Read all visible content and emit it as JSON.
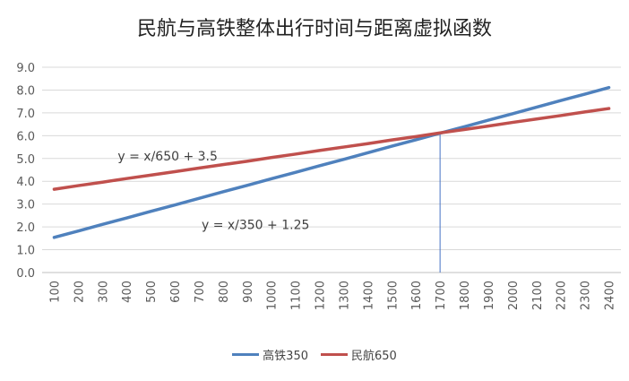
{
  "chart_data": {
    "type": "line",
    "title": "民航与高铁整体出行时间与距离虚拟函数",
    "xlabel": "",
    "ylabel": "",
    "categories": [
      "100",
      "200",
      "300",
      "400",
      "500",
      "600",
      "700",
      "800",
      "900",
      "1000",
      "1100",
      "1200",
      "1300",
      "1400",
      "1500",
      "1600",
      "1700",
      "1800",
      "1900",
      "2000",
      "2100",
      "2200",
      "2300",
      "2400"
    ],
    "ylim": [
      0,
      9
    ],
    "yticks": [
      "0.0",
      "1.0",
      "2.0",
      "3.0",
      "4.0",
      "5.0",
      "6.0",
      "7.0",
      "8.0",
      "9.0"
    ],
    "grid": true,
    "legend_position": "bottom",
    "series": [
      {
        "name": "高铁350",
        "color": "#4F81BD",
        "values": [
          1.54,
          1.82,
          2.11,
          2.39,
          2.68,
          2.96,
          3.25,
          3.54,
          3.82,
          4.11,
          4.39,
          4.68,
          4.96,
          5.25,
          5.54,
          5.82,
          6.11,
          6.39,
          6.68,
          6.96,
          7.25,
          7.54,
          7.82,
          8.11
        ]
      },
      {
        "name": "民航650",
        "color": "#C0504D",
        "values": [
          3.65,
          3.81,
          3.96,
          4.12,
          4.27,
          4.42,
          4.58,
          4.73,
          4.88,
          5.04,
          5.19,
          5.35,
          5.5,
          5.65,
          5.81,
          5.96,
          6.12,
          6.27,
          6.42,
          6.58,
          6.73,
          6.88,
          7.04,
          7.19
        ]
      }
    ],
    "annotations": [
      {
        "text": "y = x/650 + 3.5",
        "near_series": "民航650"
      },
      {
        "text": "y = x/350 + 1.25",
        "near_series": "高铁350"
      }
    ],
    "marker_line": {
      "x_category": "1700",
      "color": "#4472C4"
    }
  }
}
